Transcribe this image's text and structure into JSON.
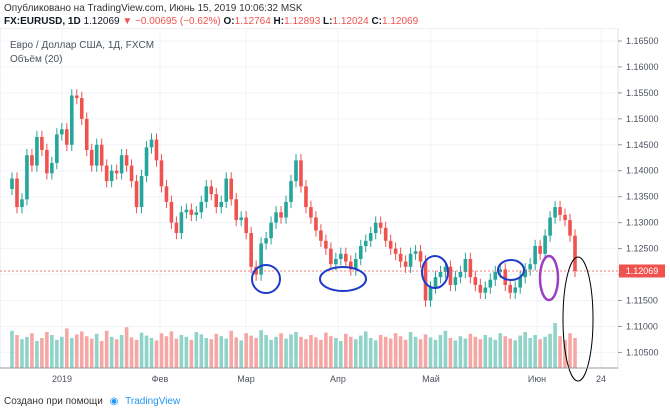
{
  "header": {
    "published": "Опубликовано на TradingView.com, Июнь 15, 2019 10:06:32 MSK",
    "symbol": "FX:EURUSD, 1D",
    "last": "1.12069",
    "change": "−0.00695 (−0.62%)",
    "o_label": "O:",
    "o": "1.12764",
    "h_label": "H:",
    "h": "1.12893",
    "l_label": "L:",
    "l": "1.12024",
    "c_label": "C:",
    "c": "1.12069"
  },
  "legend": {
    "title": "Евро / Доллар США, 1Д, FXCM",
    "volume": "Объём (20)"
  },
  "footer": {
    "created": "Создано при помощи",
    "brand": "TradingView"
  },
  "colors": {
    "up": "#26a69a",
    "down": "#ef5350",
    "up_volume": "#8fd3c9",
    "down_volume": "#f5a7a5",
    "price_label": "#ef5350",
    "annotation_blue": "#1e3cc8",
    "annotation_purple": "#9b3fbf",
    "annotation_black": "#000000"
  },
  "chart_data": {
    "type": "candlestick",
    "y_ticks": [
      "1.16500",
      "1.16000",
      "1.15500",
      "1.15000",
      "1.14500",
      "1.14000",
      "1.13500",
      "1.13000",
      "1.12500",
      "1.12000",
      "1.11500",
      "1.11000",
      "1.10500"
    ],
    "ylim": [
      1.102,
      1.1675
    ],
    "x_ticks": [
      "2019",
      "Фев",
      "Мар",
      "Апр",
      "Май",
      "Июн",
      "24"
    ],
    "current_price": "1.12069",
    "grid": true,
    "closes": [
      1.1385,
      1.133,
      1.1345,
      1.143,
      1.141,
      1.1465,
      1.144,
      1.1395,
      1.1415,
      1.147,
      1.148,
      1.145,
      1.1545,
      1.154,
      1.15,
      1.144,
      1.141,
      1.145,
      1.141,
      1.138,
      1.14,
      1.1395,
      1.143,
      1.141,
      1.138,
      1.133,
      1.139,
      1.1445,
      1.146,
      1.142,
      1.137,
      1.134,
      1.13,
      1.128,
      1.132,
      1.1325,
      1.1315,
      1.132,
      1.134,
      1.137,
      1.1355,
      1.133,
      1.134,
      1.1385,
      1.1345,
      1.1305,
      1.131,
      1.128,
      1.1215,
      1.12,
      1.126,
      1.127,
      1.13,
      1.132,
      1.131,
      1.134,
      1.138,
      1.142,
      1.137,
      1.133,
      1.131,
      1.1285,
      1.1265,
      1.125,
      1.122,
      1.123,
      1.124,
      1.1225,
      1.121,
      1.123,
      1.1255,
      1.1265,
      1.128,
      1.13,
      1.129,
      1.1265,
      1.125,
      1.124,
      1.1225,
      1.1215,
      1.124,
      1.1245,
      1.1225,
      1.115,
      1.1175,
      1.1195,
      1.1205,
      1.1215,
      1.118,
      1.1195,
      1.1205,
      1.123,
      1.1195,
      1.118,
      1.1165,
      1.1175,
      1.119,
      1.1205,
      1.121,
      1.118,
      1.1165,
      1.1175,
      1.1195,
      1.121,
      1.122,
      1.1255,
      1.124,
      1.1275,
      1.131,
      1.133,
      1.1315,
      1.1305,
      1.1275,
      1.1207
    ],
    "volumes": [
      0.62,
      0.55,
      0.48,
      0.52,
      0.58,
      0.45,
      0.5,
      0.6,
      0.55,
      0.47,
      0.52,
      0.66,
      0.5,
      0.56,
      0.61,
      0.53,
      0.49,
      0.57,
      0.45,
      0.62,
      0.52,
      0.48,
      0.55,
      0.68,
      0.51,
      0.47,
      0.59,
      0.54,
      0.5,
      0.46,
      0.58,
      0.53,
      0.61,
      0.49,
      0.55,
      0.52,
      0.47,
      0.6,
      0.56,
      0.5,
      0.48,
      0.57,
      0.53,
      0.49,
      0.62,
      0.51,
      0.46,
      0.58,
      0.54,
      0.5,
      0.63,
      0.55,
      0.47,
      0.52,
      0.58,
      0.49,
      0.56,
      0.6,
      0.52,
      0.48,
      0.55,
      0.51,
      0.47,
      0.59,
      0.53,
      0.5,
      0.45,
      0.57,
      0.52,
      0.48,
      0.54,
      0.61,
      0.5,
      0.46,
      0.55,
      0.52,
      0.49,
      0.58,
      0.53,
      0.47,
      0.6,
      0.52,
      0.48,
      0.56,
      0.51,
      0.47,
      0.55,
      0.62,
      0.5,
      0.46,
      0.53,
      0.49,
      0.57,
      0.52,
      0.48,
      0.55,
      0.51,
      0.47,
      0.58,
      0.53,
      0.49,
      0.46,
      0.54,
      0.6,
      0.5,
      0.55,
      0.48,
      0.52,
      0.57,
      0.75,
      0.53,
      0.47,
      0.58,
      0.5
    ]
  }
}
